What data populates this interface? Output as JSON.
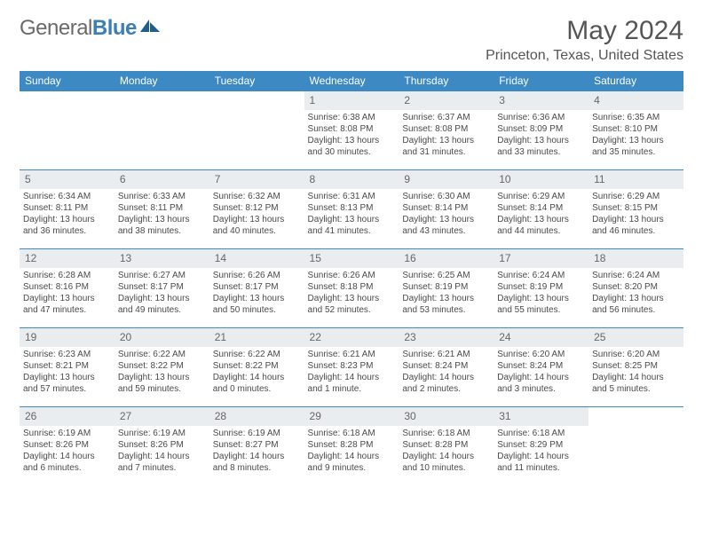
{
  "logo": {
    "general": "General",
    "blue": "Blue"
  },
  "title": "May 2024",
  "location": "Princeton, Texas, United States",
  "colors": {
    "header_bg": "#3c89c3",
    "header_fg": "#ffffff",
    "daynum_bg": "#e9edf0",
    "border": "#3c89c3",
    "text": "#4a4a4a",
    "title_color": "#555555"
  },
  "day_headers": [
    "Sunday",
    "Monday",
    "Tuesday",
    "Wednesday",
    "Thursday",
    "Friday",
    "Saturday"
  ],
  "weeks": [
    [
      null,
      null,
      null,
      {
        "n": "1",
        "sr": "6:38 AM",
        "ss": "8:08 PM",
        "dl": "13 hours and 30 minutes."
      },
      {
        "n": "2",
        "sr": "6:37 AM",
        "ss": "8:08 PM",
        "dl": "13 hours and 31 minutes."
      },
      {
        "n": "3",
        "sr": "6:36 AM",
        "ss": "8:09 PM",
        "dl": "13 hours and 33 minutes."
      },
      {
        "n": "4",
        "sr": "6:35 AM",
        "ss": "8:10 PM",
        "dl": "13 hours and 35 minutes."
      }
    ],
    [
      {
        "n": "5",
        "sr": "6:34 AM",
        "ss": "8:11 PM",
        "dl": "13 hours and 36 minutes."
      },
      {
        "n": "6",
        "sr": "6:33 AM",
        "ss": "8:11 PM",
        "dl": "13 hours and 38 minutes."
      },
      {
        "n": "7",
        "sr": "6:32 AM",
        "ss": "8:12 PM",
        "dl": "13 hours and 40 minutes."
      },
      {
        "n": "8",
        "sr": "6:31 AM",
        "ss": "8:13 PM",
        "dl": "13 hours and 41 minutes."
      },
      {
        "n": "9",
        "sr": "6:30 AM",
        "ss": "8:14 PM",
        "dl": "13 hours and 43 minutes."
      },
      {
        "n": "10",
        "sr": "6:29 AM",
        "ss": "8:14 PM",
        "dl": "13 hours and 44 minutes."
      },
      {
        "n": "11",
        "sr": "6:29 AM",
        "ss": "8:15 PM",
        "dl": "13 hours and 46 minutes."
      }
    ],
    [
      {
        "n": "12",
        "sr": "6:28 AM",
        "ss": "8:16 PM",
        "dl": "13 hours and 47 minutes."
      },
      {
        "n": "13",
        "sr": "6:27 AM",
        "ss": "8:17 PM",
        "dl": "13 hours and 49 minutes."
      },
      {
        "n": "14",
        "sr": "6:26 AM",
        "ss": "8:17 PM",
        "dl": "13 hours and 50 minutes."
      },
      {
        "n": "15",
        "sr": "6:26 AM",
        "ss": "8:18 PM",
        "dl": "13 hours and 52 minutes."
      },
      {
        "n": "16",
        "sr": "6:25 AM",
        "ss": "8:19 PM",
        "dl": "13 hours and 53 minutes."
      },
      {
        "n": "17",
        "sr": "6:24 AM",
        "ss": "8:19 PM",
        "dl": "13 hours and 55 minutes."
      },
      {
        "n": "18",
        "sr": "6:24 AM",
        "ss": "8:20 PM",
        "dl": "13 hours and 56 minutes."
      }
    ],
    [
      {
        "n": "19",
        "sr": "6:23 AM",
        "ss": "8:21 PM",
        "dl": "13 hours and 57 minutes."
      },
      {
        "n": "20",
        "sr": "6:22 AM",
        "ss": "8:22 PM",
        "dl": "13 hours and 59 minutes."
      },
      {
        "n": "21",
        "sr": "6:22 AM",
        "ss": "8:22 PM",
        "dl": "14 hours and 0 minutes."
      },
      {
        "n": "22",
        "sr": "6:21 AM",
        "ss": "8:23 PM",
        "dl": "14 hours and 1 minute."
      },
      {
        "n": "23",
        "sr": "6:21 AM",
        "ss": "8:24 PM",
        "dl": "14 hours and 2 minutes."
      },
      {
        "n": "24",
        "sr": "6:20 AM",
        "ss": "8:24 PM",
        "dl": "14 hours and 3 minutes."
      },
      {
        "n": "25",
        "sr": "6:20 AM",
        "ss": "8:25 PM",
        "dl": "14 hours and 5 minutes."
      }
    ],
    [
      {
        "n": "26",
        "sr": "6:19 AM",
        "ss": "8:26 PM",
        "dl": "14 hours and 6 minutes."
      },
      {
        "n": "27",
        "sr": "6:19 AM",
        "ss": "8:26 PM",
        "dl": "14 hours and 7 minutes."
      },
      {
        "n": "28",
        "sr": "6:19 AM",
        "ss": "8:27 PM",
        "dl": "14 hours and 8 minutes."
      },
      {
        "n": "29",
        "sr": "6:18 AM",
        "ss": "8:28 PM",
        "dl": "14 hours and 9 minutes."
      },
      {
        "n": "30",
        "sr": "6:18 AM",
        "ss": "8:28 PM",
        "dl": "14 hours and 10 minutes."
      },
      {
        "n": "31",
        "sr": "6:18 AM",
        "ss": "8:29 PM",
        "dl": "14 hours and 11 minutes."
      },
      null
    ]
  ],
  "labels": {
    "sunrise": "Sunrise:",
    "sunset": "Sunset:",
    "daylight": "Daylight:"
  }
}
